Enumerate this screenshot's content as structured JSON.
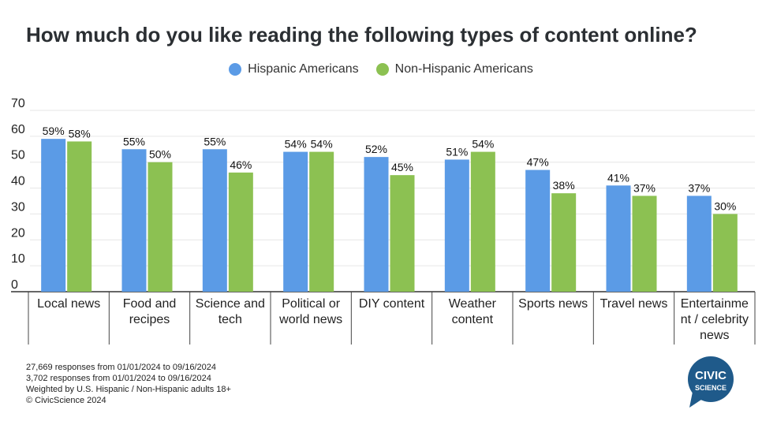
{
  "chart_data": {
    "type": "bar",
    "title": "How much do you like reading the following types of content online?",
    "categories": [
      [
        "Local news"
      ],
      [
        "Food and",
        "recipes"
      ],
      [
        "Science and",
        "tech"
      ],
      [
        "Political or",
        "world news"
      ],
      [
        "DIY content"
      ],
      [
        "Weather",
        "content"
      ],
      [
        "Sports news"
      ],
      [
        "Travel news"
      ],
      [
        "Entertainme",
        "nt / celebrity",
        "news"
      ]
    ],
    "series": [
      {
        "name": "Hispanic Americans",
        "color": "#5b9be6",
        "values": [
          59,
          55,
          55,
          54,
          52,
          51,
          47,
          41,
          37
        ]
      },
      {
        "name": "Non-Hispanic Americans",
        "color": "#8cc152",
        "values": [
          58,
          50,
          46,
          54,
          45,
          54,
          38,
          37,
          30
        ]
      }
    ],
    "value_suffix": "%",
    "yticks": [
      0,
      10,
      20,
      30,
      40,
      50,
      60,
      70
    ],
    "ylim": [
      0,
      70
    ],
    "grid": true,
    "legend_position": "top-center"
  },
  "footnotes": {
    "line1": "27,669 responses from 01/01/2024 to 09/16/2024",
    "line2": "3,702 responses from 01/01/2024 to 09/16/2024",
    "line3": "Weighted by U.S. Hispanic / Non-Hispanic adults 18+",
    "line4": "© CivicScience 2024"
  },
  "logo": {
    "line1": "CIVIC",
    "line2": "SCIENCE",
    "color": "#1f5a8a"
  }
}
